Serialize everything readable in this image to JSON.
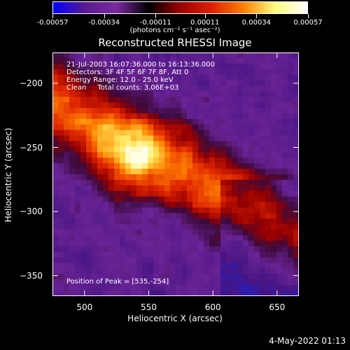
{
  "colorbar": {
    "tick_labels": [
      "-0.00057",
      "-0.00034",
      "-0.00011",
      "0.00011",
      "0.00034",
      "0.00057"
    ],
    "unit_label": "(photons cm⁻² s⁻¹ asec⁻²)",
    "colors": [
      "#0000ff",
      "#5a1a8e",
      "#7a2aa0",
      "#000000",
      "#9a0000",
      "#e02000",
      "#ff8000",
      "#ffff80",
      "#ffffff"
    ]
  },
  "title": "Reconstructed RHESSI Image",
  "overlay": {
    "line1": "21-Jul-2003 16:07:36.000 to 16:13:36.000",
    "line2": "Detectors: 3F 4F 5F 6F 7F 8F, Att 0",
    "line3": "Energy Range: 12.0 - 25.0 keV",
    "line4": "Clean     Total counts: 3.06E+03",
    "peak": "Position of Peak = [535,-254]"
  },
  "chart_data": {
    "type": "heatmap",
    "title": "Reconstructed RHESSI Image",
    "xlabel": "Heliocentric X (arcsec)",
    "ylabel": "Heliocentric Y (arcsec)",
    "xlim": [
      475,
      667
    ],
    "ylim": [
      -366,
      -176
    ],
    "x_ticks": [
      500,
      550,
      600,
      650
    ],
    "y_ticks": [
      -200,
      -250,
      -300,
      -350
    ],
    "color_range": [
      -0.00057,
      0.00057
    ],
    "peak_position": [
      535,
      -254
    ]
  },
  "date_stamp": "4-May-2022 01:13"
}
